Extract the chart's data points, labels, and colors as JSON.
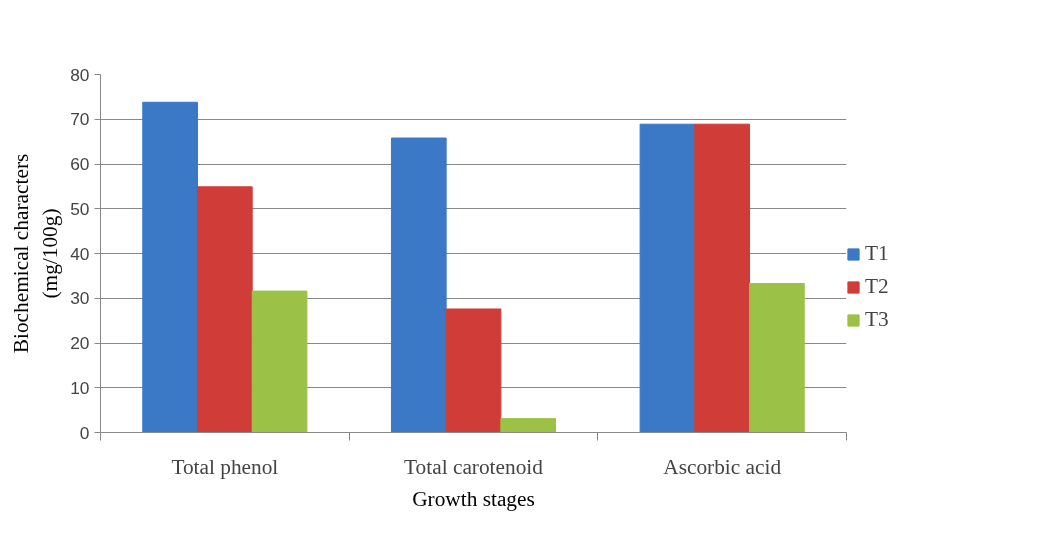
{
  "chart_data": {
    "type": "bar",
    "xlabel": "Growth stages",
    "ylabel": "Biochemical characters\n(mg/100g)",
    "categories": [
      "Total phenol",
      "Total carotenoid",
      "Ascorbic acid"
    ],
    "series": [
      {
        "name": "T1",
        "color": "#3b78c6",
        "values": [
          73.8,
          65.8,
          68.9
        ]
      },
      {
        "name": "T2",
        "color": "#d03c38",
        "values": [
          54.9,
          27.6,
          68.9
        ]
      },
      {
        "name": "T3",
        "color": "#9bc146",
        "values": [
          31.6,
          3.1,
          33.3
        ]
      }
    ],
    "ylim": [
      0,
      80
    ],
    "yticks": [
      0,
      10,
      20,
      30,
      40,
      50,
      60,
      70,
      80
    ],
    "grid": "y",
    "legend": "right"
  }
}
